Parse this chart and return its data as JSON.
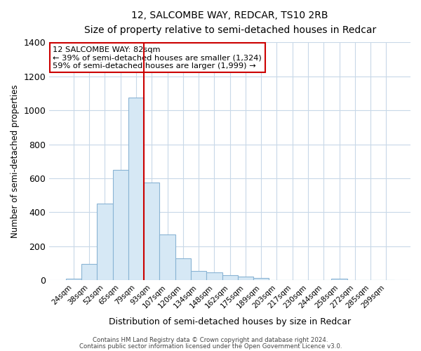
{
  "title": "12, SALCOMBE WAY, REDCAR, TS10 2RB",
  "subtitle": "Size of property relative to semi-detached houses in Redcar",
  "xlabel": "Distribution of semi-detached houses by size in Redcar",
  "ylabel": "Number of semi-detached properties",
  "bar_labels": [
    "24sqm",
    "38sqm",
    "52sqm",
    "65sqm",
    "79sqm",
    "93sqm",
    "107sqm",
    "120sqm",
    "134sqm",
    "148sqm",
    "162sqm",
    "175sqm",
    "189sqm",
    "203sqm",
    "217sqm",
    "230sqm",
    "244sqm",
    "258sqm",
    "272sqm",
    "285sqm",
    "299sqm"
  ],
  "bar_values": [
    10,
    95,
    450,
    650,
    1075,
    575,
    270,
    130,
    55,
    45,
    30,
    20,
    12,
    0,
    0,
    0,
    0,
    8,
    0,
    0,
    0
  ],
  "bar_color": "#d6e8f5",
  "bar_edge_color": "#8ab4d4",
  "vline_x": 4.5,
  "vline_color": "#cc0000",
  "annotation_title": "12 SALCOMBE WAY: 82sqm",
  "annotation_line1": "← 39% of semi-detached houses are smaller (1,324)",
  "annotation_line2": "59% of semi-detached houses are larger (1,999) →",
  "annotation_box_color": "#cc0000",
  "ylim": [
    0,
    1400
  ],
  "yticks": [
    0,
    200,
    400,
    600,
    800,
    1000,
    1200,
    1400
  ],
  "footer1": "Contains HM Land Registry data © Crown copyright and database right 2024.",
  "footer2": "Contains public sector information licensed under the Open Government Licence v3.0.",
  "bg_color": "#ffffff",
  "grid_color": "#c8d8e8"
}
